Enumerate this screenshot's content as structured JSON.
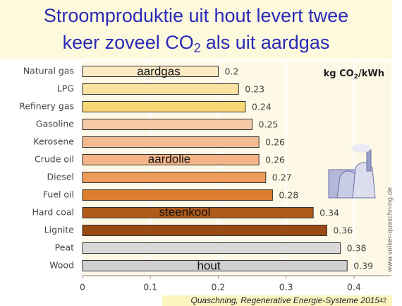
{
  "chart_data": {
    "type": "barh",
    "title": [
      "Stroomproduktie uit hout levert twee",
      "keer zoveel CO",
      "2",
      "als uit aardgas"
    ],
    "unit_label": [
      "kg CO",
      "2",
      "/kWh"
    ],
    "categories": [
      "Natural gas",
      "LPG",
      "Refinery gas",
      "Gasoline",
      "Kerosene",
      "Crude oil",
      "Diesel",
      "Fuel oil",
      "Hard coal",
      "Lignite",
      "Peat",
      "Wood"
    ],
    "values": [
      0.2,
      0.23,
      0.24,
      0.25,
      0.26,
      0.26,
      0.27,
      0.28,
      0.34,
      0.36,
      0.38,
      0.39
    ],
    "colors": [
      "#fcebc6",
      "#fbe2a0",
      "#f6d876",
      "#f6c9a6",
      "#f3bb90",
      "#f2b488",
      "#ee9c5a",
      "#dc7c2e",
      "#b05a1a",
      "#9a4912",
      "#d9d9d9",
      "#cfcfcf"
    ],
    "annotations": [
      "aardgas",
      "aardolie",
      "steenkool",
      "hout"
    ],
    "xlim": [
      0,
      0.45
    ],
    "xticks": [
      0,
      0.1,
      0.2,
      0.3,
      0.4
    ],
    "grid": true
  },
  "watermark": "www.volker-quaschning.de",
  "source": "Quaschning, Regenerative Energie-Systeme 2015",
  "page_number": "42"
}
